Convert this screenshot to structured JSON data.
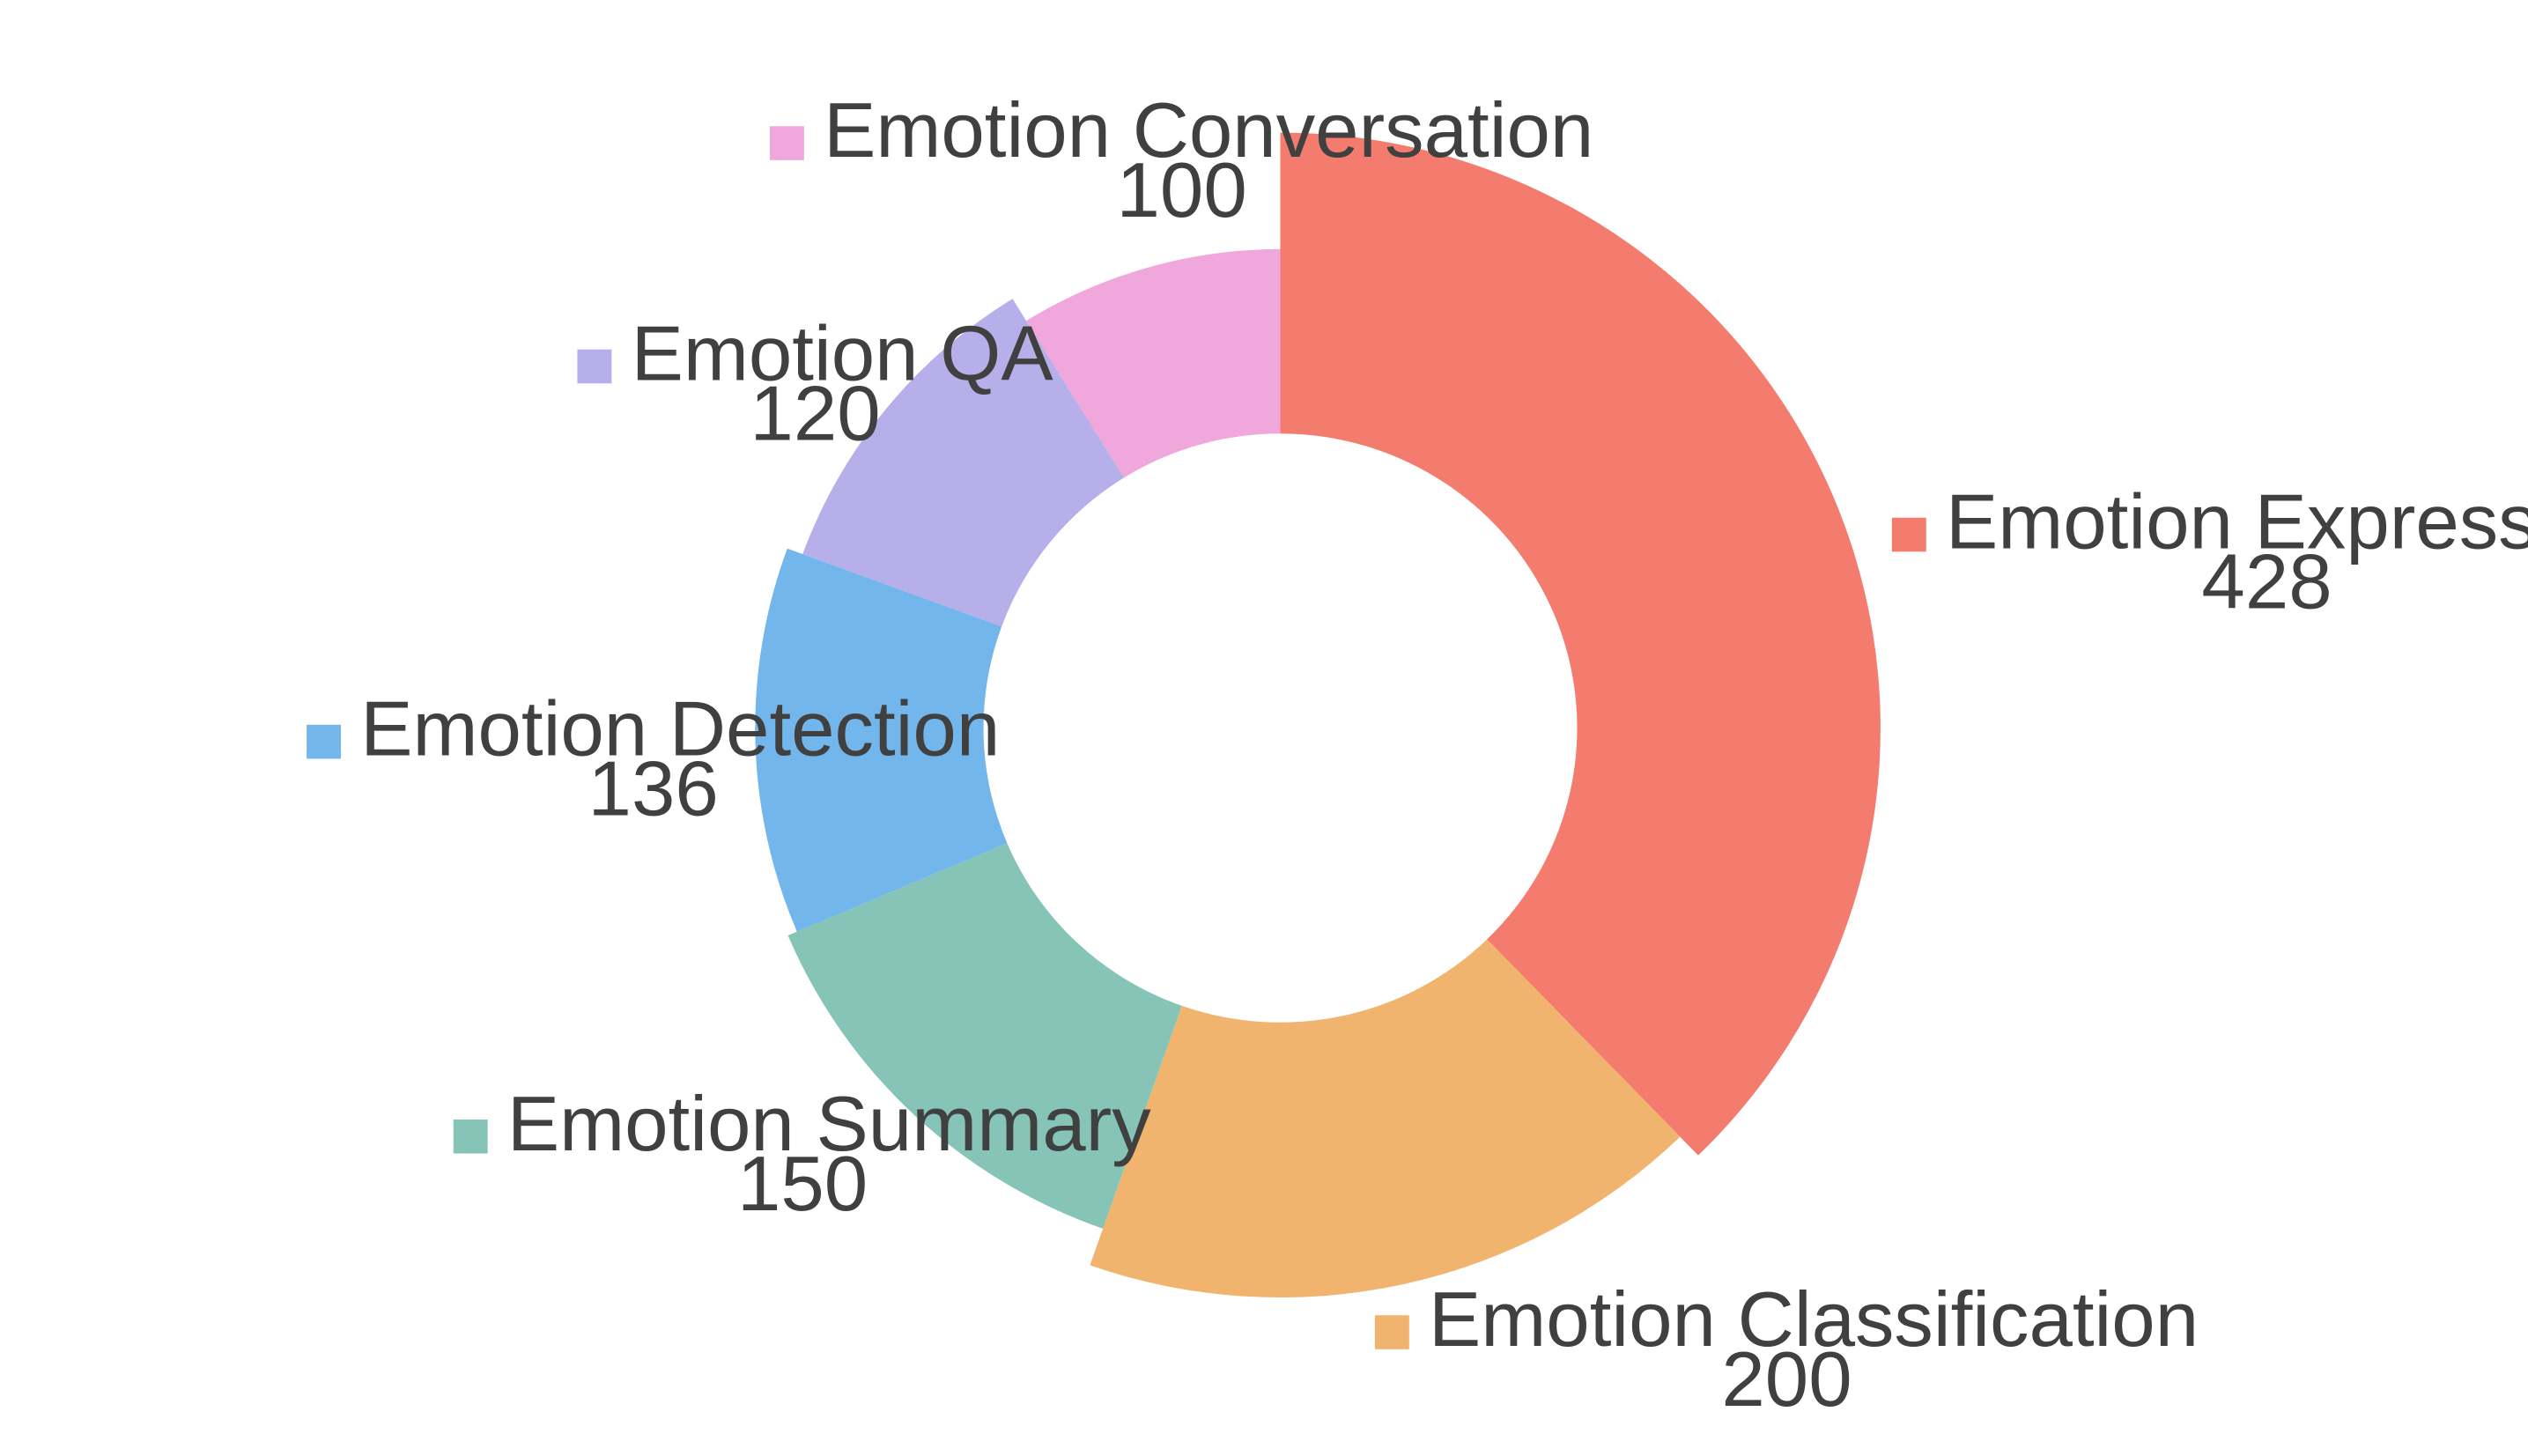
{
  "chart_data": {
    "type": "pie",
    "variant": "donut",
    "categories": [
      "Emotion Expression",
      "Emotion Classification",
      "Emotion Summary",
      "Emotion Detection",
      "Emotion QA",
      "Emotion Conversation"
    ],
    "values": [
      428,
      200,
      150,
      136,
      120,
      100
    ],
    "colors": [
      "#F47C6E",
      "#F0B46E",
      "#86C4B7",
      "#73B6EC",
      "#B6AFEA",
      "#F0A7DB"
    ],
    "labels_show_value": true,
    "legend": "none"
  }
}
